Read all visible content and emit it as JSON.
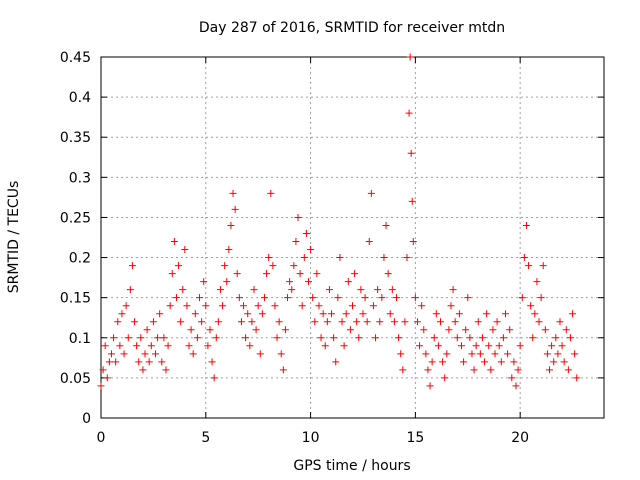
{
  "chart_data": {
    "type": "scatter",
    "title": "Day 287 of 2016, SRMTID for receiver mtdn",
    "xlabel": "GPS time / hours",
    "ylabel": "SRMTID / TECUs",
    "xlim": [
      0,
      24
    ],
    "ylim": [
      0,
      0.45
    ],
    "xticks": [
      0,
      5,
      10,
      15,
      20
    ],
    "yticks": [
      0,
      0.05,
      0.1,
      0.15,
      0.2,
      0.25,
      0.3,
      0.35,
      0.4,
      0.45
    ],
    "xtick_labels": [
      "0",
      "5",
      "10",
      "15",
      "20"
    ],
    "ytick_labels": [
      "0",
      "0.05",
      "0.1",
      "0.15",
      "0.2",
      "0.25",
      "0.3",
      "0.35",
      "0.4",
      "0.45"
    ],
    "grid": true,
    "marker": "+",
    "color": "#ff0000",
    "series": [
      {
        "name": "SRMTID",
        "points": [
          [
            0.0,
            0.04
          ],
          [
            0.1,
            0.06
          ],
          [
            0.2,
            0.09
          ],
          [
            0.3,
            0.05
          ],
          [
            0.4,
            0.07
          ],
          [
            0.5,
            0.08
          ],
          [
            0.6,
            0.1
          ],
          [
            0.7,
            0.07
          ],
          [
            0.8,
            0.12
          ],
          [
            0.9,
            0.09
          ],
          [
            1.0,
            0.13
          ],
          [
            1.1,
            0.08
          ],
          [
            1.2,
            0.14
          ],
          [
            1.3,
            0.1
          ],
          [
            1.4,
            0.16
          ],
          [
            1.5,
            0.19
          ],
          [
            1.6,
            0.12
          ],
          [
            1.7,
            0.09
          ],
          [
            1.8,
            0.07
          ],
          [
            1.9,
            0.1
          ],
          [
            2.0,
            0.06
          ],
          [
            2.1,
            0.08
          ],
          [
            2.2,
            0.11
          ],
          [
            2.3,
            0.07
          ],
          [
            2.4,
            0.09
          ],
          [
            2.5,
            0.12
          ],
          [
            2.6,
            0.08
          ],
          [
            2.7,
            0.1
          ],
          [
            2.8,
            0.13
          ],
          [
            2.9,
            0.07
          ],
          [
            3.0,
            0.1
          ],
          [
            3.1,
            0.06
          ],
          [
            3.2,
            0.09
          ],
          [
            3.3,
            0.14
          ],
          [
            3.4,
            0.18
          ],
          [
            3.5,
            0.22
          ],
          [
            3.6,
            0.15
          ],
          [
            3.7,
            0.19
          ],
          [
            3.8,
            0.12
          ],
          [
            3.9,
            0.16
          ],
          [
            4.0,
            0.21
          ],
          [
            4.1,
            0.14
          ],
          [
            4.2,
            0.09
          ],
          [
            4.3,
            0.11
          ],
          [
            4.4,
            0.08
          ],
          [
            4.5,
            0.13
          ],
          [
            4.6,
            0.1
          ],
          [
            4.7,
            0.15
          ],
          [
            4.8,
            0.12
          ],
          [
            4.9,
            0.17
          ],
          [
            5.0,
            0.14
          ],
          [
            5.1,
            0.09
          ],
          [
            5.2,
            0.11
          ],
          [
            5.3,
            0.07
          ],
          [
            5.4,
            0.05
          ],
          [
            5.5,
            0.1
          ],
          [
            5.6,
            0.12
          ],
          [
            5.7,
            0.16
          ],
          [
            5.8,
            0.14
          ],
          [
            5.9,
            0.19
          ],
          [
            6.0,
            0.17
          ],
          [
            6.1,
            0.21
          ],
          [
            6.2,
            0.24
          ],
          [
            6.3,
            0.28
          ],
          [
            6.4,
            0.26
          ],
          [
            6.5,
            0.18
          ],
          [
            6.6,
            0.15
          ],
          [
            6.7,
            0.12
          ],
          [
            6.8,
            0.14
          ],
          [
            6.9,
            0.1
          ],
          [
            7.0,
            0.13
          ],
          [
            7.1,
            0.09
          ],
          [
            7.2,
            0.12
          ],
          [
            7.3,
            0.16
          ],
          [
            7.4,
            0.11
          ],
          [
            7.5,
            0.14
          ],
          [
            7.6,
            0.08
          ],
          [
            7.7,
            0.13
          ],
          [
            7.8,
            0.15
          ],
          [
            7.9,
            0.18
          ],
          [
            8.0,
            0.2
          ],
          [
            8.1,
            0.28
          ],
          [
            8.2,
            0.19
          ],
          [
            8.3,
            0.14
          ],
          [
            8.4,
            0.1
          ],
          [
            8.5,
            0.12
          ],
          [
            8.6,
            0.08
          ],
          [
            8.7,
            0.06
          ],
          [
            8.8,
            0.11
          ],
          [
            8.9,
            0.15
          ],
          [
            9.0,
            0.17
          ],
          [
            9.1,
            0.16
          ],
          [
            9.2,
            0.19
          ],
          [
            9.3,
            0.22
          ],
          [
            9.4,
            0.25
          ],
          [
            9.5,
            0.18
          ],
          [
            9.6,
            0.14
          ],
          [
            9.7,
            0.2
          ],
          [
            9.8,
            0.23
          ],
          [
            9.9,
            0.17
          ],
          [
            10.0,
            0.21
          ],
          [
            10.1,
            0.15
          ],
          [
            10.2,
            0.12
          ],
          [
            10.3,
            0.18
          ],
          [
            10.4,
            0.14
          ],
          [
            10.5,
            0.1
          ],
          [
            10.6,
            0.13
          ],
          [
            10.7,
            0.09
          ],
          [
            10.8,
            0.12
          ],
          [
            10.9,
            0.16
          ],
          [
            11.0,
            0.13
          ],
          [
            11.1,
            0.1
          ],
          [
            11.2,
            0.07
          ],
          [
            11.3,
            0.15
          ],
          [
            11.4,
            0.2
          ],
          [
            11.5,
            0.12
          ],
          [
            11.6,
            0.09
          ],
          [
            11.7,
            0.13
          ],
          [
            11.8,
            0.17
          ],
          [
            11.9,
            0.11
          ],
          [
            12.0,
            0.14
          ],
          [
            12.1,
            0.18
          ],
          [
            12.2,
            0.12
          ],
          [
            12.3,
            0.1
          ],
          [
            12.4,
            0.16
          ],
          [
            12.5,
            0.13
          ],
          [
            12.6,
            0.15
          ],
          [
            12.7,
            0.12
          ],
          [
            12.8,
            0.22
          ],
          [
            12.9,
            0.28
          ],
          [
            13.0,
            0.14
          ],
          [
            13.1,
            0.1
          ],
          [
            13.2,
            0.16
          ],
          [
            13.3,
            0.12
          ],
          [
            13.4,
            0.15
          ],
          [
            13.5,
            0.2
          ],
          [
            13.6,
            0.24
          ],
          [
            13.7,
            0.18
          ],
          [
            13.8,
            0.13
          ],
          [
            13.9,
            0.16
          ],
          [
            14.0,
            0.12
          ],
          [
            14.1,
            0.15
          ],
          [
            14.2,
            0.1
          ],
          [
            14.3,
            0.08
          ],
          [
            14.4,
            0.06
          ],
          [
            14.5,
            0.12
          ],
          [
            14.6,
            0.2
          ],
          [
            14.7,
            0.38
          ],
          [
            14.75,
            0.45
          ],
          [
            14.8,
            0.33
          ],
          [
            14.85,
            0.27
          ],
          [
            14.9,
            0.22
          ],
          [
            15.0,
            0.15
          ],
          [
            15.1,
            0.12
          ],
          [
            15.2,
            0.09
          ],
          [
            15.3,
            0.14
          ],
          [
            15.4,
            0.11
          ],
          [
            15.5,
            0.08
          ],
          [
            15.6,
            0.06
          ],
          [
            15.7,
            0.04
          ],
          [
            15.8,
            0.07
          ],
          [
            15.9,
            0.1
          ],
          [
            16.0,
            0.13
          ],
          [
            16.1,
            0.09
          ],
          [
            16.2,
            0.12
          ],
          [
            16.3,
            0.07
          ],
          [
            16.4,
            0.05
          ],
          [
            16.5,
            0.08
          ],
          [
            16.6,
            0.11
          ],
          [
            16.7,
            0.14
          ],
          [
            16.8,
            0.16
          ],
          [
            16.9,
            0.12
          ],
          [
            17.0,
            0.1
          ],
          [
            17.1,
            0.13
          ],
          [
            17.2,
            0.09
          ],
          [
            17.3,
            0.07
          ],
          [
            17.4,
            0.11
          ],
          [
            17.5,
            0.15
          ],
          [
            17.6,
            0.1
          ],
          [
            17.7,
            0.08
          ],
          [
            17.8,
            0.06
          ],
          [
            17.9,
            0.09
          ],
          [
            18.0,
            0.12
          ],
          [
            18.1,
            0.08
          ],
          [
            18.2,
            0.1
          ],
          [
            18.3,
            0.07
          ],
          [
            18.4,
            0.13
          ],
          [
            18.5,
            0.09
          ],
          [
            18.6,
            0.06
          ],
          [
            18.7,
            0.11
          ],
          [
            18.8,
            0.08
          ],
          [
            18.9,
            0.12
          ],
          [
            19.0,
            0.09
          ],
          [
            19.1,
            0.07
          ],
          [
            19.2,
            0.1
          ],
          [
            19.3,
            0.13
          ],
          [
            19.4,
            0.08
          ],
          [
            19.5,
            0.11
          ],
          [
            19.6,
            0.05
          ],
          [
            19.7,
            0.07
          ],
          [
            19.8,
            0.04
          ],
          [
            19.9,
            0.06
          ],
          [
            20.0,
            0.09
          ],
          [
            20.1,
            0.15
          ],
          [
            20.2,
            0.2
          ],
          [
            20.3,
            0.24
          ],
          [
            20.4,
            0.19
          ],
          [
            20.5,
            0.14
          ],
          [
            20.6,
            0.1
          ],
          [
            20.7,
            0.13
          ],
          [
            20.8,
            0.17
          ],
          [
            20.9,
            0.12
          ],
          [
            21.0,
            0.15
          ],
          [
            21.1,
            0.19
          ],
          [
            21.2,
            0.11
          ],
          [
            21.3,
            0.08
          ],
          [
            21.4,
            0.06
          ],
          [
            21.5,
            0.09
          ],
          [
            21.6,
            0.07
          ],
          [
            21.7,
            0.1
          ],
          [
            21.8,
            0.08
          ],
          [
            21.9,
            0.12
          ],
          [
            22.0,
            0.09
          ],
          [
            22.1,
            0.07
          ],
          [
            22.2,
            0.11
          ],
          [
            22.3,
            0.06
          ],
          [
            22.4,
            0.1
          ],
          [
            22.5,
            0.13
          ],
          [
            22.6,
            0.08
          ],
          [
            22.7,
            0.05
          ]
        ]
      }
    ]
  }
}
